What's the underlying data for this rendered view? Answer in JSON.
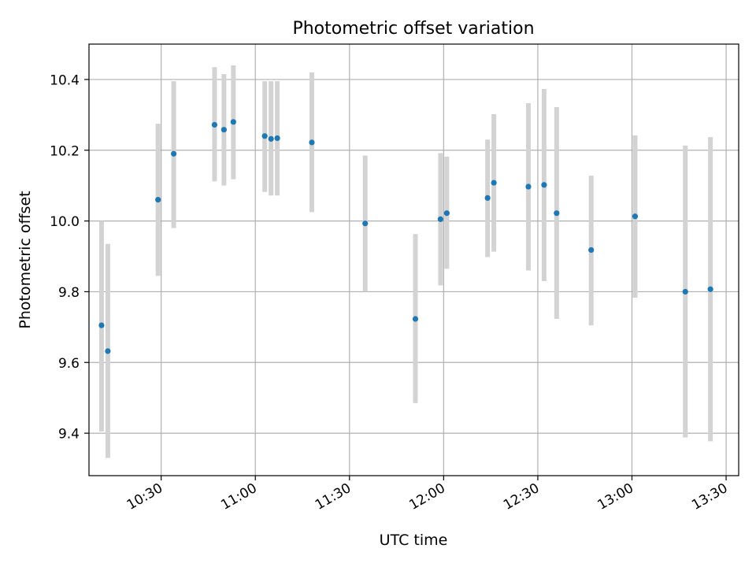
{
  "chart_data": {
    "type": "scatter",
    "title": "Photometric offset variation",
    "xlabel": "UTC time",
    "ylabel": "Photometric offset",
    "x_tick_labels": [
      "10:30",
      "11:00",
      "11:30",
      "12:00",
      "12:30",
      "13:00",
      "13:30"
    ],
    "y_tick_labels": [
      "9.4",
      "9.6",
      "9.8",
      "10.0",
      "10.2",
      "10.4"
    ],
    "y_ticks": [
      9.4,
      9.6,
      9.8,
      10.0,
      10.2,
      10.4
    ],
    "xlim": [
      "10:07",
      "13:34"
    ],
    "ylim": [
      9.28,
      10.5
    ],
    "grid": true,
    "colors": {
      "point": "#1f77b4",
      "errorbar": "#d3d3d3",
      "grid": "#b0b0b0"
    },
    "series": [
      {
        "points": [
          {
            "x": "10:11",
            "y": 9.705,
            "ylow": 9.405,
            "yhigh": 10.0
          },
          {
            "x": "10:13",
            "y": 9.632,
            "ylow": 9.33,
            "yhigh": 9.935
          },
          {
            "x": "10:29",
            "y": 10.06,
            "ylow": 9.845,
            "yhigh": 10.275
          },
          {
            "x": "10:34",
            "y": 10.19,
            "ylow": 9.98,
            "yhigh": 10.395
          },
          {
            "x": "10:47",
            "y": 10.272,
            "ylow": 10.112,
            "yhigh": 10.435
          },
          {
            "x": "10:50",
            "y": 10.258,
            "ylow": 10.1,
            "yhigh": 10.415
          },
          {
            "x": "10:53",
            "y": 10.28,
            "ylow": 10.118,
            "yhigh": 10.44
          },
          {
            "x": "11:03",
            "y": 10.24,
            "ylow": 10.082,
            "yhigh": 10.395
          },
          {
            "x": "11:05",
            "y": 10.232,
            "ylow": 10.072,
            "yhigh": 10.395
          },
          {
            "x": "11:07",
            "y": 10.234,
            "ylow": 10.072,
            "yhigh": 10.395
          },
          {
            "x": "11:18",
            "y": 10.222,
            "ylow": 10.025,
            "yhigh": 10.42
          },
          {
            "x": "11:35",
            "y": 9.993,
            "ylow": 9.8,
            "yhigh": 10.185
          },
          {
            "x": "11:51",
            "y": 9.723,
            "ylow": 9.485,
            "yhigh": 9.963
          },
          {
            "x": "11:59",
            "y": 10.005,
            "ylow": 9.818,
            "yhigh": 10.192
          },
          {
            "x": "12:01",
            "y": 10.022,
            "ylow": 9.865,
            "yhigh": 10.182
          },
          {
            "x": "12:14",
            "y": 10.065,
            "ylow": 9.898,
            "yhigh": 10.23
          },
          {
            "x": "12:16",
            "y": 10.108,
            "ylow": 9.913,
            "yhigh": 10.302
          },
          {
            "x": "12:27",
            "y": 10.097,
            "ylow": 9.86,
            "yhigh": 10.333
          },
          {
            "x": "12:32",
            "y": 10.102,
            "ylow": 9.83,
            "yhigh": 10.373
          },
          {
            "x": "12:36",
            "y": 10.022,
            "ylow": 9.723,
            "yhigh": 10.322
          },
          {
            "x": "12:47",
            "y": 9.918,
            "ylow": 9.705,
            "yhigh": 10.128
          },
          {
            "x": "13:01",
            "y": 10.013,
            "ylow": 9.783,
            "yhigh": 10.242
          },
          {
            "x": "13:17",
            "y": 9.8,
            "ylow": 9.388,
            "yhigh": 10.213
          },
          {
            "x": "13:25",
            "y": 9.807,
            "ylow": 9.377,
            "yhigh": 10.237
          }
        ]
      }
    ]
  }
}
